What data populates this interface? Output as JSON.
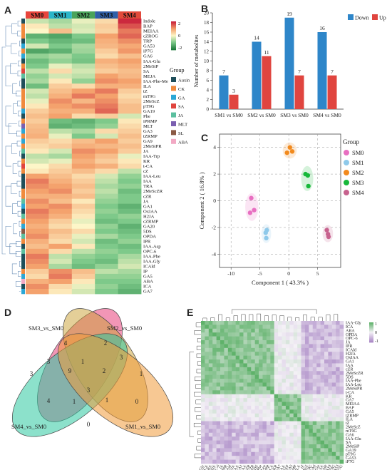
{
  "panels": {
    "A": "A",
    "B": "B",
    "C": "C",
    "D": "D",
    "E": "E"
  },
  "chart_data": [
    {
      "panel": "A",
      "type": "heatmap",
      "columns": [
        "SM0",
        "SM1",
        "SM2",
        "SM3",
        "SM4"
      ],
      "column_colors": [
        "#e8453c",
        "#2bb5c9",
        "#4aa35a",
        "#2f5fa8",
        "#e24a3b"
      ],
      "rows": [
        "Indole",
        "BAP",
        "MEIAA",
        "cZROG",
        "TRP",
        "GA53",
        "iP7G",
        "GA6",
        "IAA-Glu",
        "2MeSiP",
        "SA",
        "MEJA",
        "IAA-Phe-Me",
        "ILA",
        "tZ",
        "mT9G",
        "2MeScZ",
        "pT9G",
        "GA19",
        "Phe",
        "iPRMP",
        "MLT",
        "GA3",
        "tZRMP",
        "GA9",
        "2MeSiPR",
        "JA",
        "IAA-Trp",
        "KR",
        "t-CA",
        "cZ",
        "IAA-Leu",
        "IAA",
        "TRA",
        "2MeScZR",
        "cZR",
        "JA",
        "GA1",
        "OxIAA",
        "H2JA",
        "cZRMP",
        "GA20",
        "5DS",
        "OPDA",
        "IPR",
        "IAA-Asp",
        "OPC-6",
        "IAA-Phe",
        "IAA-Gly",
        "ICAld",
        "IP",
        "GA5",
        "ABA",
        "ICA",
        "GA7"
      ],
      "row_groups": [
        "Auxin",
        "CK",
        "CK",
        "CK",
        "Auxin",
        "GA",
        "CK",
        "GA",
        "Auxin",
        "CK",
        "SA",
        "JA",
        "Auxin",
        "Auxin",
        "CK",
        "CK",
        "CK",
        "CK",
        "GA",
        "Auxin",
        "CK",
        "MLT",
        "GA",
        "CK",
        "GA",
        "CK",
        "JA",
        "Auxin",
        "CK",
        "SA",
        "CK",
        "Auxin",
        "Auxin",
        "Auxin",
        "CK",
        "CK",
        "JA",
        "GA",
        "Auxin",
        "JA",
        "CK",
        "GA",
        "SL",
        "JA",
        "CK",
        "Auxin",
        "JA",
        "Auxin",
        "Auxin",
        "Auxin",
        "CK",
        "GA",
        "ABA",
        "Auxin",
        "GA"
      ],
      "legend_title": "Group",
      "legend_items": [
        {
          "label": "Auxin",
          "color": "#1f4e5a"
        },
        {
          "label": "CK",
          "color": "#f08a3c"
        },
        {
          "label": "GA",
          "color": "#2aa7d6"
        },
        {
          "label": "SA",
          "color": "#e0443e"
        },
        {
          "label": "JA",
          "color": "#5bbf9f"
        },
        {
          "label": "MLT",
          "color": "#7b5fb0"
        },
        {
          "label": "SL",
          "color": "#8a5a44"
        },
        {
          "label": "ABA",
          "color": "#f2a9c4"
        }
      ],
      "scale_ticks": [
        "2",
        "0",
        "-2"
      ],
      "values": [
        [
          -0.5,
          -0.8,
          -0.2,
          0.4,
          2.4
        ],
        [
          0.2,
          -0.6,
          -0.4,
          0.6,
          2.0
        ],
        [
          0.0,
          0.8,
          -0.3,
          0.5,
          1.6
        ],
        [
          -1.6,
          -1.8,
          -1.2,
          1.2,
          1.8
        ],
        [
          -1.2,
          -1.5,
          -1.4,
          1.0,
          1.4
        ],
        [
          -0.4,
          -1.2,
          -0.8,
          0.9,
          1.1
        ],
        [
          -1.8,
          -1.6,
          -0.9,
          0.6,
          1.3
        ],
        [
          -1.0,
          -0.8,
          -1.2,
          0.4,
          0.8
        ],
        [
          -1.4,
          -1.0,
          -1.3,
          1.0,
          1.2
        ],
        [
          -1.2,
          -0.2,
          -0.6,
          0.8,
          1.0
        ],
        [
          -0.6,
          0.4,
          -0.4,
          0.6,
          0.8
        ],
        [
          -1.0,
          -0.4,
          -0.6,
          1.2,
          0.9
        ],
        [
          -0.8,
          0.2,
          -1.0,
          1.4,
          1.2
        ],
        [
          -1.4,
          0.6,
          0.4,
          1.0,
          1.0
        ],
        [
          -0.4,
          0.8,
          1.2,
          1.6,
          0.6
        ],
        [
          -0.6,
          1.0,
          1.6,
          1.2,
          0.4
        ],
        [
          -0.2,
          1.4,
          0.9,
          1.4,
          0.6
        ],
        [
          0.2,
          1.2,
          1.4,
          1.6,
          0.8
        ],
        [
          0.6,
          1.0,
          1.0,
          1.8,
          0.8
        ],
        [
          0.8,
          1.2,
          0.4,
          0.6,
          -0.4
        ],
        [
          0.6,
          -1.4,
          -1.6,
          -1.2,
          0.2
        ],
        [
          0.8,
          -1.6,
          -1.4,
          -1.0,
          0.4
        ],
        [
          0.9,
          -0.6,
          -0.8,
          0.4,
          0.6
        ],
        [
          1.0,
          -0.2,
          -1.2,
          -0.4,
          0.8
        ],
        [
          0.6,
          0.4,
          0.8,
          1.2,
          0.6
        ],
        [
          0.4,
          0.6,
          1.0,
          0.9,
          0.8
        ],
        [
          0.2,
          -0.4,
          1.4,
          1.2,
          0.6
        ],
        [
          -0.6,
          -0.8,
          1.2,
          0.8,
          -0.2
        ],
        [
          -0.4,
          -0.2,
          1.0,
          0.6,
          0.2
        ],
        [
          0.0,
          0.4,
          1.2,
          1.0,
          0.4
        ],
        [
          0.2,
          0.6,
          0.8,
          0.4,
          -0.6
        ],
        [
          1.2,
          0.8,
          0.4,
          -0.4,
          -1.0
        ],
        [
          1.6,
          1.0,
          0.6,
          -0.6,
          -1.2
        ],
        [
          1.4,
          1.2,
          0.8,
          -0.8,
          -1.0
        ],
        [
          1.2,
          1.4,
          0.6,
          -0.6,
          -1.4
        ],
        [
          1.0,
          1.0,
          0.8,
          -0.8,
          -1.2
        ],
        [
          1.4,
          0.8,
          0.2,
          -1.0,
          -1.2
        ],
        [
          1.2,
          1.4,
          0.6,
          -1.2,
          -1.6
        ],
        [
          1.6,
          1.2,
          0.4,
          -1.0,
          -1.4
        ],
        [
          1.4,
          1.0,
          0.2,
          -1.2,
          -1.0
        ],
        [
          1.2,
          0.6,
          -0.2,
          -1.4,
          -1.2
        ],
        [
          1.0,
          0.4,
          0.0,
          -1.0,
          -1.6
        ],
        [
          1.2,
          0.8,
          0.4,
          -1.2,
          -1.4
        ],
        [
          1.4,
          0.6,
          -0.2,
          -0.8,
          -1.2
        ],
        [
          1.0,
          0.4,
          -0.4,
          -1.4,
          -1.0
        ],
        [
          0.8,
          1.2,
          0.2,
          -1.2,
          -1.4
        ],
        [
          1.2,
          0.4,
          -0.6,
          -1.0,
          -1.2
        ],
        [
          1.6,
          -0.6,
          -1.0,
          -1.2,
          -0.8
        ],
        [
          1.4,
          -0.4,
          -1.2,
          -1.4,
          -0.6
        ],
        [
          1.2,
          -0.8,
          -1.4,
          -1.0,
          -0.4
        ],
        [
          0.6,
          1.4,
          0.8,
          -0.6,
          -0.8
        ],
        [
          0.4,
          1.6,
          0.6,
          -1.0,
          -1.0
        ],
        [
          1.0,
          1.2,
          0.2,
          -1.2,
          -1.2
        ],
        [
          1.4,
          0.4,
          -0.2,
          -1.0,
          -1.4
        ],
        [
          1.2,
          0.2,
          -0.4,
          -1.2,
          -1.6
        ]
      ]
    },
    {
      "panel": "B",
      "type": "bar",
      "categories": [
        "SM1 vs SM0",
        "SM2 vs SM0",
        "SM3 vs SM0",
        "SM4 vs SM0"
      ],
      "series": [
        {
          "name": "Down",
          "color": "#2e86c9",
          "values": [
            7,
            14,
            19,
            16
          ]
        },
        {
          "name": "Up",
          "color": "#e0453f",
          "values": [
            3,
            11,
            7,
            7
          ]
        }
      ],
      "ylabel": "Number of metabolites",
      "ylim": [
        0,
        20
      ],
      "yticks": [
        0,
        2,
        4,
        6,
        8,
        10,
        12,
        14,
        16,
        18,
        20
      ],
      "legend": "top-right"
    },
    {
      "panel": "C",
      "type": "scatter",
      "xlabel": "Component 1 ( 43.3% )",
      "ylabel": "Component 2 ( 16.8% )",
      "xlim": [
        -12,
        9
      ],
      "ylim": [
        -5,
        5
      ],
      "xticks": [
        -10,
        -5,
        0,
        5
      ],
      "yticks": [
        -4,
        -2,
        0,
        2,
        4
      ],
      "legend_title": "Group",
      "series": [
        {
          "name": "SM0",
          "color": "#e86fc1",
          "points": [
            [
              -6.5,
              0.2
            ],
            [
              -6.7,
              -0.9
            ],
            [
              -6.0,
              -0.7
            ]
          ]
        },
        {
          "name": "SM1",
          "color": "#8ec9ea",
          "points": [
            [
              -3.8,
              -2.2
            ],
            [
              -3.9,
              -2.8
            ],
            [
              -4.0,
              -2.4
            ]
          ]
        },
        {
          "name": "SM2",
          "color": "#f28a1d",
          "points": [
            [
              0.2,
              4.0
            ],
            [
              -0.3,
              3.6
            ],
            [
              0.6,
              3.7
            ]
          ]
        },
        {
          "name": "SM3",
          "color": "#17b83a",
          "points": [
            [
              2.9,
              2.0
            ],
            [
              3.3,
              1.9
            ],
            [
              3.4,
              1.1
            ]
          ]
        },
        {
          "name": "SM4",
          "color": "#c7628e",
          "points": [
            [
              6.6,
              -2.2
            ],
            [
              6.9,
              -2.7
            ],
            [
              6.8,
              -2.5
            ]
          ]
        }
      ],
      "grid": true
    },
    {
      "panel": "D",
      "type": "venn",
      "sets": [
        "SM3_vs_SM0",
        "SM2_vs_SM0",
        "SM4_vs_SM0",
        "SM1_vs_SM0"
      ],
      "region_values": [
        "4",
        "2",
        "3",
        "1",
        "3",
        "3",
        "9",
        "2",
        "1",
        "3",
        "4",
        "1",
        "1",
        "0",
        "0"
      ]
    },
    {
      "panel": "E",
      "type": "heatmap",
      "labels": [
        "IAA-Gly",
        "ICA",
        "ABA",
        "OPDA",
        "OPC-6",
        "JA",
        "IPR",
        "ICAld",
        "H2JA",
        "OxIAA",
        "GA1",
        "IAA",
        "cZR",
        "2MeScZR",
        "5DS",
        "IAA-Phe",
        "IAA-Leu",
        "2MeSiPR",
        "t-CA",
        "KR",
        "GA7",
        "MEIAA",
        "BAP",
        "GA5",
        "tZRMP",
        "ILA",
        "tZ",
        "2MeScZ",
        "mT9G",
        "GA6",
        "IAA-Glu",
        "SA",
        "2MeSiP",
        "GA19",
        "pT9G",
        "GA53",
        "iP7G"
      ],
      "scale_ticks": [
        "1",
        "0",
        "-1"
      ]
    }
  ]
}
